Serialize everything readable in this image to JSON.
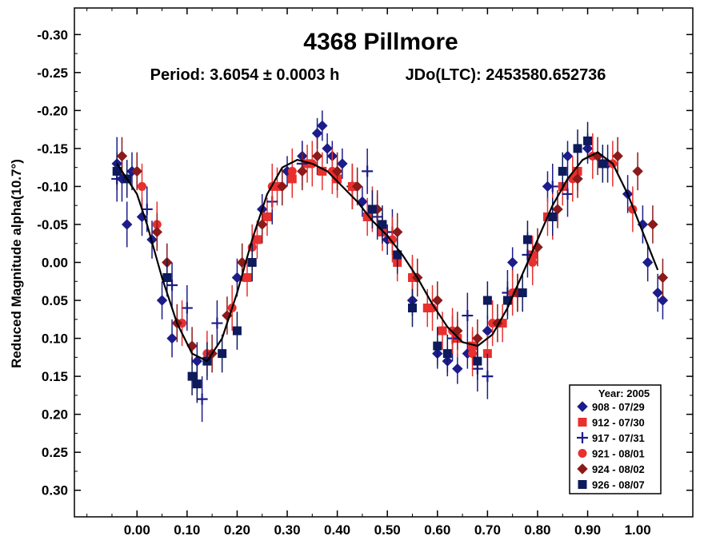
{
  "chart_data": {
    "type": "scatter",
    "title": "4368 Pillmore",
    "subtitle_period": "Period: 3.6054 ± 0.0003 h",
    "subtitle_epoch": "JDo(LTC): 2453580.652736",
    "xlabel": "",
    "ylabel": "Reduced Magnitude alpha(10.7°)",
    "xlim": [
      -0.125,
      1.11
    ],
    "ylim": [
      0.335,
      -0.335
    ],
    "y_inverted": true,
    "x_ticks": [
      0.0,
      0.1,
      0.2,
      0.3,
      0.4,
      0.5,
      0.6,
      0.7,
      0.8,
      0.9,
      1.0
    ],
    "x_tick_labels": [
      "0.00",
      "0.10",
      "0.20",
      "0.30",
      "0.40",
      "0.50",
      "0.60",
      "0.70",
      "0.80",
      "0.90",
      "1.00"
    ],
    "y_ticks": [
      -0.3,
      -0.25,
      -0.2,
      -0.15,
      -0.1,
      -0.05,
      0.0,
      0.05,
      0.1,
      0.15,
      0.2,
      0.25,
      0.3
    ],
    "y_tick_labels": [
      "-0.30",
      "-0.25",
      "-0.20",
      "-0.15",
      "-0.10",
      "-0.05",
      "0.00",
      "0.05",
      "0.10",
      "0.15",
      "0.20",
      "0.25",
      "0.30"
    ],
    "grid": false,
    "legend": {
      "title": "Year: 2005",
      "placement": "bottom-right",
      "entries": [
        {
          "label": "908 - 07/29",
          "marker": "diamond",
          "color": "#1c1c8a"
        },
        {
          "label": "912 - 07/30",
          "marker": "square",
          "color": "#e8302e"
        },
        {
          "label": "917 - 07/31",
          "marker": "plus",
          "color": "#1c1c8a"
        },
        {
          "label": "921 - 08/01",
          "marker": "circle",
          "color": "#e8302e"
        },
        {
          "label": "924 - 08/02",
          "marker": "diamond",
          "color": "#8b1a1a"
        },
        {
          "label": "926 - 08/07",
          "marker": "square",
          "color": "#0d1a5c"
        }
      ]
    },
    "fit_curve": {
      "color": "#000000",
      "x": [
        -0.04,
        0.0,
        0.02,
        0.05,
        0.08,
        0.11,
        0.14,
        0.17,
        0.2,
        0.23,
        0.26,
        0.29,
        0.32,
        0.35,
        0.38,
        0.41,
        0.44,
        0.47,
        0.5,
        0.53,
        0.56,
        0.59,
        0.62,
        0.65,
        0.68,
        0.71,
        0.74,
        0.77,
        0.8,
        0.83,
        0.86,
        0.89,
        0.92,
        0.95,
        0.98,
        1.01,
        1.04
      ],
      "y": [
        -0.13,
        -0.09,
        -0.05,
        0.02,
        0.08,
        0.12,
        0.13,
        0.1,
        0.04,
        -0.03,
        -0.09,
        -0.125,
        -0.135,
        -0.13,
        -0.12,
        -0.1,
        -0.08,
        -0.055,
        -0.035,
        -0.01,
        0.02,
        0.055,
        0.085,
        0.105,
        0.11,
        0.095,
        0.06,
        0.015,
        -0.03,
        -0.075,
        -0.11,
        -0.135,
        -0.145,
        -0.13,
        -0.09,
        -0.04,
        0.01
      ]
    },
    "series": [
      {
        "name": "908 - 07/29",
        "marker": "diamond",
        "color": "#1c1c8a",
        "x": [
          -0.04,
          -0.03,
          -0.02,
          -0.01,
          0.01,
          0.03,
          0.05,
          0.07,
          0.12,
          0.2,
          0.25,
          0.3,
          0.33,
          0.36,
          0.37,
          0.38,
          0.39,
          0.41,
          0.45,
          0.5,
          0.55,
          0.6,
          0.62,
          0.64,
          0.66,
          0.7,
          0.75,
          0.82,
          0.86,
          0.9,
          0.94,
          0.98,
          1.01,
          1.02,
          1.04,
          1.05
        ],
        "y": [
          -0.13,
          -0.11,
          -0.05,
          -0.12,
          -0.06,
          -0.03,
          0.05,
          0.1,
          0.13,
          0.02,
          -0.07,
          -0.12,
          -0.14,
          -0.17,
          -0.18,
          -0.15,
          -0.14,
          -0.13,
          -0.08,
          -0.03,
          0.05,
          0.12,
          0.13,
          0.14,
          0.12,
          0.09,
          0.0,
          -0.1,
          -0.14,
          -0.15,
          -0.13,
          -0.09,
          -0.05,
          0.0,
          0.04,
          0.05
        ],
        "err": [
          0.035,
          0.03,
          0.03,
          0.025,
          0.025,
          0.025,
          0.025,
          0.025,
          0.025,
          0.025,
          0.02,
          0.02,
          0.02,
          0.02,
          0.02,
          0.02,
          0.02,
          0.02,
          0.02,
          0.02,
          0.02,
          0.02,
          0.02,
          0.02,
          0.02,
          0.02,
          0.02,
          0.02,
          0.02,
          0.02,
          0.025,
          0.025,
          0.025,
          0.025,
          0.025,
          0.025
        ]
      },
      {
        "name": "912 - 07/30",
        "marker": "square",
        "color": "#e8302e",
        "x": [
          0.22,
          0.24,
          0.26,
          0.28,
          0.31,
          0.34,
          0.37,
          0.4,
          0.43,
          0.46,
          0.49,
          0.52,
          0.55,
          0.58,
          0.61,
          0.64,
          0.67,
          0.7,
          0.73,
          0.76,
          0.79,
          0.82,
          0.85,
          0.88
        ],
        "y": [
          0.02,
          -0.03,
          -0.06,
          -0.1,
          -0.11,
          -0.13,
          -0.12,
          -0.11,
          -0.1,
          -0.06,
          -0.04,
          0.0,
          0.02,
          0.06,
          0.09,
          0.1,
          0.11,
          0.12,
          0.08,
          0.04,
          -0.01,
          -0.06,
          -0.1,
          -0.12
        ],
        "err": [
          0.025,
          0.025,
          0.025,
          0.025,
          0.025,
          0.025,
          0.025,
          0.025,
          0.025,
          0.025,
          0.025,
          0.025,
          0.025,
          0.025,
          0.025,
          0.025,
          0.025,
          0.025,
          0.025,
          0.025,
          0.025,
          0.025,
          0.025,
          0.025
        ]
      },
      {
        "name": "917 - 07/31",
        "marker": "plus",
        "color": "#1c1c8a",
        "x": [
          -0.04,
          0.02,
          0.07,
          0.1,
          0.13,
          0.16,
          0.27,
          0.33,
          0.43,
          0.46,
          0.48,
          0.51,
          0.63,
          0.66,
          0.68,
          0.7,
          0.74,
          0.78,
          0.83,
          0.86
        ],
        "y": [
          -0.11,
          -0.07,
          0.03,
          0.06,
          0.18,
          0.08,
          -0.08,
          -0.13,
          -0.1,
          -0.12,
          -0.06,
          -0.04,
          0.1,
          0.07,
          0.14,
          0.15,
          0.04,
          -0.01,
          -0.1,
          -0.09
        ],
        "err": [
          0.03,
          0.03,
          0.03,
          0.03,
          0.03,
          0.03,
          0.03,
          0.03,
          0.03,
          0.03,
          0.03,
          0.03,
          0.03,
          0.03,
          0.03,
          0.03,
          0.03,
          0.03,
          0.03,
          0.03
        ]
      },
      {
        "name": "921 - 08/01",
        "marker": "circle",
        "color": "#e8302e",
        "x": [
          0.01,
          0.04,
          0.09,
          0.14,
          0.19,
          0.23,
          0.27,
          0.31,
          0.35,
          0.39,
          0.43,
          0.47,
          0.51,
          0.55,
          0.59,
          0.63,
          0.67,
          0.71,
          0.75,
          0.79,
          0.83,
          0.87,
          0.91,
          0.95,
          0.99
        ],
        "y": [
          -0.1,
          -0.05,
          0.08,
          0.12,
          0.06,
          -0.02,
          -0.1,
          -0.12,
          -0.13,
          -0.12,
          -0.1,
          -0.07,
          -0.03,
          0.02,
          0.06,
          0.09,
          0.12,
          0.08,
          0.04,
          0.0,
          -0.06,
          -0.11,
          -0.14,
          -0.13,
          -0.07
        ],
        "err": [
          0.03,
          0.03,
          0.03,
          0.03,
          0.03,
          0.03,
          0.03,
          0.03,
          0.03,
          0.03,
          0.03,
          0.03,
          0.03,
          0.03,
          0.03,
          0.03,
          0.03,
          0.03,
          0.03,
          0.03,
          0.03,
          0.03,
          0.03,
          0.03,
          0.03
        ]
      },
      {
        "name": "924 - 08/02",
        "marker": "diamond",
        "color": "#8b1a1a",
        "x": [
          -0.03,
          0.0,
          0.04,
          0.06,
          0.08,
          0.11,
          0.15,
          0.18,
          0.21,
          0.25,
          0.29,
          0.33,
          0.36,
          0.4,
          0.44,
          0.48,
          0.52,
          0.56,
          0.6,
          0.64,
          0.68,
          0.72,
          0.76,
          0.8,
          0.84,
          0.88,
          0.92,
          0.96,
          1.0,
          1.03,
          1.05
        ],
        "y": [
          -0.14,
          -0.12,
          -0.04,
          0.0,
          0.08,
          0.11,
          0.12,
          0.07,
          0.0,
          -0.05,
          -0.1,
          -0.12,
          -0.14,
          -0.12,
          -0.1,
          -0.07,
          -0.04,
          0.02,
          0.05,
          0.09,
          0.1,
          0.08,
          0.04,
          -0.02,
          -0.07,
          -0.11,
          -0.14,
          -0.14,
          -0.12,
          -0.05,
          0.02
        ],
        "err": [
          0.025,
          0.025,
          0.025,
          0.025,
          0.025,
          0.025,
          0.025,
          0.025,
          0.025,
          0.025,
          0.025,
          0.025,
          0.025,
          0.025,
          0.025,
          0.025,
          0.025,
          0.025,
          0.025,
          0.025,
          0.025,
          0.025,
          0.025,
          0.025,
          0.025,
          0.025,
          0.025,
          0.025,
          0.025,
          0.025,
          0.025
        ]
      },
      {
        "name": "926 - 08/07",
        "marker": "square",
        "color": "#0d1a5c",
        "x": [
          -0.04,
          -0.02,
          0.06,
          0.11,
          0.12,
          0.14,
          0.17,
          0.2,
          0.23,
          0.47,
          0.49,
          0.52,
          0.55,
          0.6,
          0.62,
          0.68,
          0.7,
          0.74,
          0.77,
          0.78,
          0.83,
          0.85,
          0.88,
          0.9,
          0.93
        ],
        "y": [
          -0.12,
          -0.11,
          0.02,
          0.15,
          0.16,
          0.13,
          0.12,
          0.09,
          0.0,
          -0.07,
          -0.05,
          -0.01,
          0.06,
          0.11,
          0.12,
          0.13,
          0.05,
          0.05,
          0.04,
          -0.03,
          -0.06,
          -0.12,
          -0.15,
          -0.16,
          -0.13
        ],
        "err": [
          0.025,
          0.025,
          0.025,
          0.025,
          0.025,
          0.025,
          0.025,
          0.025,
          0.025,
          0.025,
          0.025,
          0.025,
          0.025,
          0.025,
          0.025,
          0.025,
          0.025,
          0.025,
          0.025,
          0.025,
          0.025,
          0.025,
          0.025,
          0.025,
          0.025
        ]
      }
    ]
  }
}
